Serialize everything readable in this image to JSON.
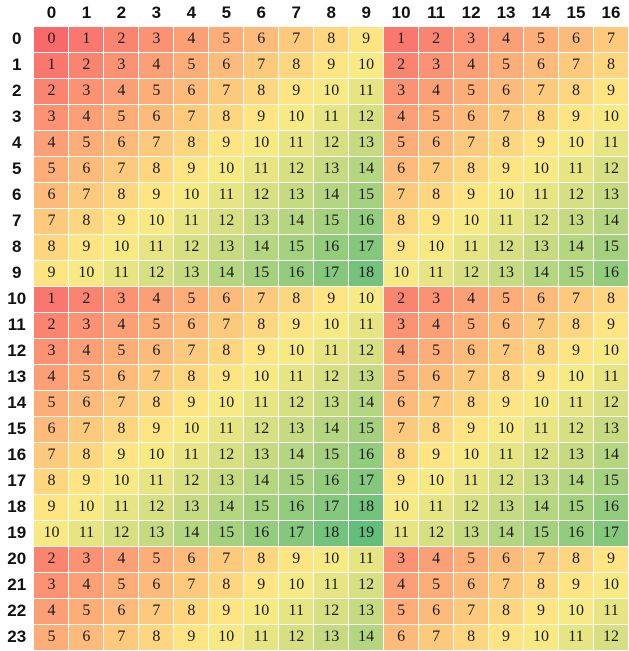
{
  "columns": [
    "0",
    "1",
    "2",
    "3",
    "4",
    "5",
    "6",
    "7",
    "8",
    "9",
    "10",
    "11",
    "12",
    "13",
    "14",
    "15",
    "16"
  ],
  "rows": [
    {
      "label": "0",
      "values": [
        0,
        1,
        2,
        3,
        4,
        5,
        6,
        7,
        8,
        9,
        1,
        2,
        3,
        4,
        5,
        6,
        7
      ]
    },
    {
      "label": "1",
      "values": [
        1,
        2,
        3,
        4,
        5,
        6,
        7,
        8,
        9,
        10,
        2,
        3,
        4,
        5,
        6,
        7,
        8
      ]
    },
    {
      "label": "2",
      "values": [
        2,
        3,
        4,
        5,
        6,
        7,
        8,
        9,
        10,
        11,
        3,
        4,
        5,
        6,
        7,
        8,
        9
      ]
    },
    {
      "label": "3",
      "values": [
        3,
        4,
        5,
        6,
        7,
        8,
        9,
        10,
        11,
        12,
        4,
        5,
        6,
        7,
        8,
        9,
        10
      ]
    },
    {
      "label": "4",
      "values": [
        4,
        5,
        6,
        7,
        8,
        9,
        10,
        11,
        12,
        13,
        5,
        6,
        7,
        8,
        9,
        10,
        11
      ]
    },
    {
      "label": "5",
      "values": [
        5,
        6,
        7,
        8,
        9,
        10,
        11,
        12,
        13,
        14,
        6,
        7,
        8,
        9,
        10,
        11,
        12
      ]
    },
    {
      "label": "6",
      "values": [
        6,
        7,
        8,
        9,
        10,
        11,
        12,
        13,
        14,
        15,
        7,
        8,
        9,
        10,
        11,
        12,
        13
      ]
    },
    {
      "label": "7",
      "values": [
        7,
        8,
        9,
        10,
        11,
        12,
        13,
        14,
        15,
        16,
        8,
        9,
        10,
        11,
        12,
        13,
        14
      ]
    },
    {
      "label": "8",
      "values": [
        8,
        9,
        10,
        11,
        12,
        13,
        14,
        15,
        16,
        17,
        9,
        10,
        11,
        12,
        13,
        14,
        15
      ]
    },
    {
      "label": "9",
      "values": [
        9,
        10,
        11,
        12,
        13,
        14,
        15,
        16,
        17,
        18,
        10,
        11,
        12,
        13,
        14,
        15,
        16
      ]
    },
    {
      "label": "10",
      "values": [
        1,
        2,
        3,
        4,
        5,
        6,
        7,
        8,
        9,
        10,
        2,
        3,
        4,
        5,
        6,
        7,
        8
      ]
    },
    {
      "label": "11",
      "values": [
        2,
        3,
        4,
        5,
        6,
        7,
        8,
        9,
        10,
        11,
        3,
        4,
        5,
        6,
        7,
        8,
        9
      ]
    },
    {
      "label": "12",
      "values": [
        3,
        4,
        5,
        6,
        7,
        8,
        9,
        10,
        11,
        12,
        4,
        5,
        6,
        7,
        8,
        9,
        10
      ]
    },
    {
      "label": "13",
      "values": [
        4,
        5,
        6,
        7,
        8,
        9,
        10,
        11,
        12,
        13,
        5,
        6,
        7,
        8,
        9,
        10,
        11
      ]
    },
    {
      "label": "14",
      "values": [
        5,
        6,
        7,
        8,
        9,
        10,
        11,
        12,
        13,
        14,
        6,
        7,
        8,
        9,
        10,
        11,
        12
      ]
    },
    {
      "label": "15",
      "values": [
        6,
        7,
        8,
        9,
        10,
        11,
        12,
        13,
        14,
        15,
        7,
        8,
        9,
        10,
        11,
        12,
        13
      ]
    },
    {
      "label": "16",
      "values": [
        7,
        8,
        9,
        10,
        11,
        12,
        13,
        14,
        15,
        16,
        8,
        9,
        10,
        11,
        12,
        13,
        14
      ]
    },
    {
      "label": "17",
      "values": [
        8,
        9,
        10,
        11,
        12,
        13,
        14,
        15,
        16,
        17,
        9,
        10,
        11,
        12,
        13,
        14,
        15
      ]
    },
    {
      "label": "18",
      "values": [
        9,
        10,
        11,
        12,
        13,
        14,
        15,
        16,
        17,
        18,
        10,
        11,
        12,
        13,
        14,
        15,
        16
      ]
    },
    {
      "label": "19",
      "values": [
        10,
        11,
        12,
        13,
        14,
        15,
        16,
        17,
        18,
        19,
        11,
        12,
        13,
        14,
        15,
        16,
        17
      ]
    },
    {
      "label": "20",
      "values": [
        2,
        3,
        4,
        5,
        6,
        7,
        8,
        9,
        10,
        11,
        3,
        4,
        5,
        6,
        7,
        8,
        9
      ]
    },
    {
      "label": "21",
      "values": [
        3,
        4,
        5,
        6,
        7,
        8,
        9,
        10,
        11,
        12,
        4,
        5,
        6,
        7,
        8,
        9,
        10
      ]
    },
    {
      "label": "22",
      "values": [
        4,
        5,
        6,
        7,
        8,
        9,
        10,
        11,
        12,
        13,
        5,
        6,
        7,
        8,
        9,
        10,
        11
      ]
    },
    {
      "label": "23",
      "values": [
        5,
        6,
        7,
        8,
        9,
        10,
        11,
        12,
        13,
        14,
        6,
        7,
        8,
        9,
        10,
        11,
        12
      ]
    }
  ],
  "color_scale": {
    "low": "#f8696b",
    "mid": "#ffeb84",
    "high": "#63be7b"
  }
}
